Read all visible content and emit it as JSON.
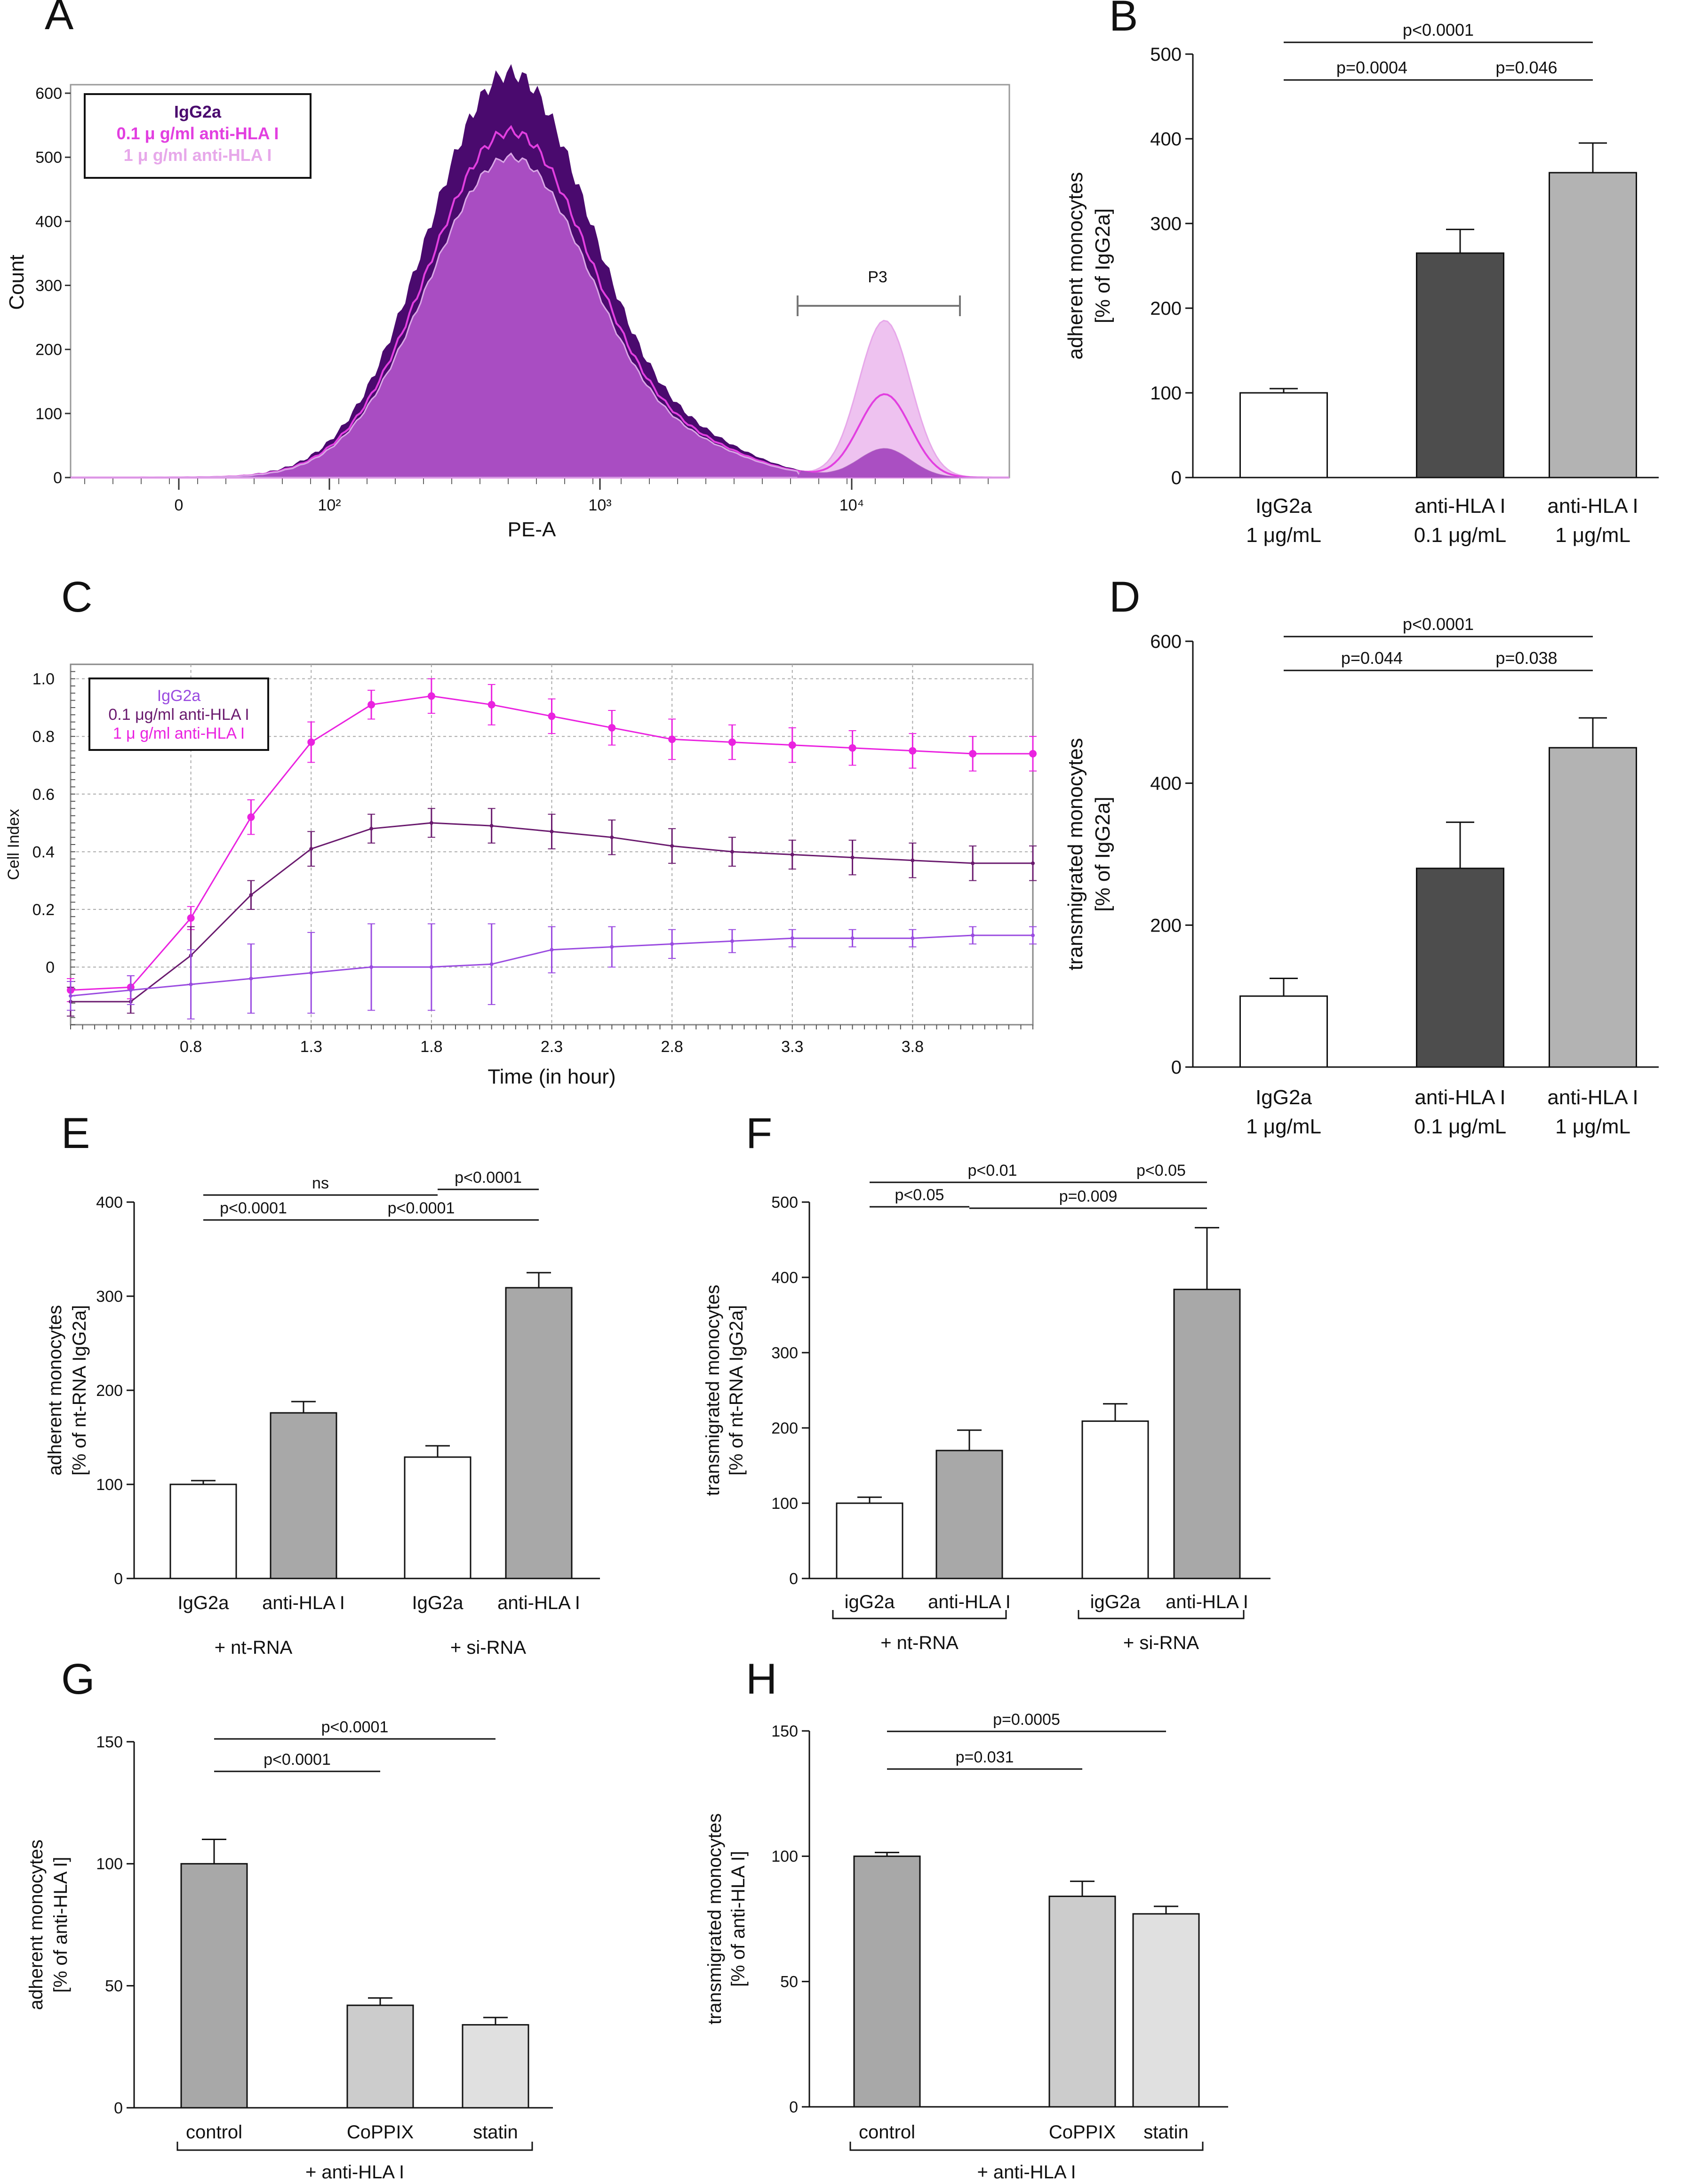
{
  "panel_letters": [
    "A",
    "B",
    "C",
    "D",
    "E",
    "F",
    "G",
    "H"
  ],
  "colors": {
    "igg2a_dark": "#4a0a6e",
    "mid_magenta": "#e23fe0",
    "light_pink": "#e7a8ea",
    "fill_purple": "#a94dc2",
    "ci_magenta": "#ea22e0",
    "ci_plum": "#6a1a6e",
    "ci_violet": "#9a4be0",
    "bar_white": "#ffffff",
    "bar_dark": "#4d4d4d",
    "bar_light": "#b3b3b3",
    "bar_mid": "#a8a8a8",
    "bar_pale": "#cccccc",
    "bar_paler": "#e0e0e0"
  },
  "chart_data": [
    {
      "id": "A",
      "type": "area",
      "subtype": "flow cytometry histogram",
      "title": "",
      "xlabel": "PE-A",
      "ylabel": "Count",
      "x_scale": "biexponential",
      "x_ticks": [
        {
          "value": "0",
          "label": "0"
        },
        {
          "value": "1e2",
          "label": "10²"
        },
        {
          "value": "1e3",
          "label": "10³"
        },
        {
          "value": "1e4",
          "label": "10⁴"
        }
      ],
      "y_ticks": [
        0,
        100,
        200,
        300,
        400,
        500,
        600
      ],
      "ylim": [
        0,
        650
      ],
      "gate": {
        "name": "P3",
        "range": "≈ 6×10³ – 3×10⁴"
      },
      "legend": {
        "position": "top-left",
        "entries": [
          {
            "label": "IgG2a",
            "color": "#4a0a6e"
          },
          {
            "label": "0.1 μ g/ml anti-HLA I",
            "color": "#e23fe0"
          },
          {
            "label": "1 μ g/ml anti-HLA I",
            "color": "#e7a8ea"
          }
        ]
      },
      "series": [
        {
          "name": "IgG2a",
          "main_peak_count": 630,
          "main_peak_at": 480,
          "p3_peak_count": 45
        },
        {
          "name": "0.1 μ g/ml anti-HLA I",
          "main_peak_count": 540,
          "main_peak_at": 480,
          "p3_peak_count": 130
        },
        {
          "name": "1 μ g/ml anti-HLA I",
          "main_peak_count": 500,
          "main_peak_at": 480,
          "p3_peak_count": 245
        }
      ]
    },
    {
      "id": "B",
      "type": "bar",
      "ylabel_lines": [
        "adherent monocytes",
        "[% of IgG2a]"
      ],
      "ylim": [
        0,
        500
      ],
      "y_ticks": [
        0,
        100,
        200,
        300,
        400,
        500
      ],
      "categories": [
        {
          "label_lines": [
            "IgG2a",
            "1 μg/mL"
          ],
          "value": 100,
          "error": 5,
          "color": "#ffffff"
        },
        {
          "label_lines": [
            "anti-HLA I",
            "0.1 μg/mL"
          ],
          "value": 265,
          "error": 28,
          "color": "#4d4d4d"
        },
        {
          "label_lines": [
            "anti-HLA I",
            "1 μg/mL"
          ],
          "value": 360,
          "error": 35,
          "color": "#b3b3b3"
        }
      ],
      "significance": [
        {
          "from": 1,
          "to": 2,
          "label": "p=0.0004",
          "level": 0
        },
        {
          "from": 2,
          "to": 3,
          "label": "p=0.046",
          "level": 0
        },
        {
          "from": 1,
          "to": 3,
          "label": "p<0.0001",
          "level": 1
        }
      ]
    },
    {
      "id": "C",
      "type": "line",
      "xlabel": "Time (in hour)",
      "ylabel": "Cell Index",
      "xlim": [
        0.3,
        4.3
      ],
      "ylim": [
        -0.2,
        1.05
      ],
      "x_ticks": [
        0.8,
        1.3,
        1.8,
        2.3,
        2.8,
        3.3,
        3.8
      ],
      "y_ticks": [
        0,
        0.2,
        0.4,
        0.6,
        0.8,
        1.0
      ],
      "y_tick_labels": [
        "0",
        "0.2",
        "0.4",
        "0.6",
        "0.8",
        "1.0"
      ],
      "legend": {
        "position": "top-left",
        "entries": [
          {
            "label": "IgG2a",
            "color": "#9a4be0"
          },
          {
            "label": "0.1 μg/ml anti-HLA I",
            "color": "#6a1a6e"
          },
          {
            "label": "1 μ g/ml anti-HLA I",
            "color": "#ea22e0"
          }
        ]
      },
      "x": [
        0.3,
        0.55,
        0.8,
        1.05,
        1.3,
        1.55,
        1.8,
        2.05,
        2.3,
        2.55,
        2.8,
        3.05,
        3.3,
        3.55,
        3.8,
        4.05,
        4.3
      ],
      "series": [
        {
          "name": "1 μ g/ml anti-HLA I",
          "color": "#ea22e0",
          "marker": true,
          "values": [
            -0.08,
            -0.07,
            0.17,
            0.52,
            0.78,
            0.91,
            0.94,
            0.91,
            0.87,
            0.83,
            0.79,
            0.78,
            0.77,
            0.76,
            0.75,
            0.74,
            0.74
          ],
          "errors": [
            0.04,
            0.04,
            0.04,
            0.06,
            0.07,
            0.05,
            0.06,
            0.07,
            0.06,
            0.06,
            0.07,
            0.06,
            0.06,
            0.06,
            0.06,
            0.06,
            0.06
          ]
        },
        {
          "name": "0.1 μg/ml anti-HLA I",
          "color": "#6a1a6e",
          "marker": false,
          "values": [
            -0.12,
            -0.12,
            0.04,
            0.25,
            0.41,
            0.48,
            0.5,
            0.49,
            0.47,
            0.45,
            0.42,
            0.4,
            0.39,
            0.38,
            0.37,
            0.36,
            0.36
          ],
          "errors": [
            0.05,
            0.04,
            0.1,
            0.05,
            0.06,
            0.05,
            0.05,
            0.06,
            0.06,
            0.06,
            0.06,
            0.05,
            0.05,
            0.06,
            0.06,
            0.06,
            0.06
          ]
        },
        {
          "name": "IgG2a",
          "color": "#9a4be0",
          "marker": false,
          "values": [
            -0.1,
            -0.08,
            -0.06,
            -0.04,
            -0.02,
            0.0,
            0.0,
            0.01,
            0.06,
            0.07,
            0.08,
            0.09,
            0.1,
            0.1,
            0.1,
            0.11,
            0.11
          ],
          "errors": [
            0.05,
            0.05,
            0.12,
            0.12,
            0.14,
            0.15,
            0.15,
            0.14,
            0.08,
            0.07,
            0.05,
            0.04,
            0.03,
            0.03,
            0.03,
            0.03,
            0.03
          ]
        }
      ]
    },
    {
      "id": "D",
      "type": "bar",
      "ylabel_lines": [
        "transmigrated monocytes",
        "[% of IgG2a]"
      ],
      "ylim": [
        0,
        600
      ],
      "y_ticks": [
        0,
        200,
        400,
        600
      ],
      "categories": [
        {
          "label_lines": [
            "IgG2a",
            "1 μg/mL"
          ],
          "value": 100,
          "error": 25,
          "color": "#ffffff"
        },
        {
          "label_lines": [
            "anti-HLA I",
            "0.1 μg/mL"
          ],
          "value": 280,
          "error": 65,
          "color": "#4d4d4d"
        },
        {
          "label_lines": [
            "anti-HLA I",
            "1 μg/mL"
          ],
          "value": 450,
          "error": 42,
          "color": "#b3b3b3"
        }
      ],
      "significance": [
        {
          "from": 1,
          "to": 2,
          "label": "p=0.044",
          "level": 0
        },
        {
          "from": 2,
          "to": 3,
          "label": "p=0.038",
          "level": 0
        },
        {
          "from": 1,
          "to": 3,
          "label": "p<0.0001",
          "level": 1
        }
      ]
    },
    {
      "id": "E",
      "type": "bar",
      "ylabel_lines": [
        "adherent monocytes",
        "[% of nt-RNA IgG2a]"
      ],
      "ylim": [
        0,
        400
      ],
      "y_ticks": [
        0,
        100,
        200,
        300,
        400
      ],
      "categories": [
        {
          "label_lines": [
            "IgG2a"
          ],
          "value": 100,
          "error": 4,
          "color": "#ffffff"
        },
        {
          "label_lines": [
            "anti-HLA I"
          ],
          "value": 176,
          "error": 12,
          "color": "#a8a8a8"
        },
        {
          "label_lines": [
            "IgG2a"
          ],
          "value": 129,
          "error": 12,
          "color": "#ffffff"
        },
        {
          "label_lines": [
            "anti-HLA I"
          ],
          "value": 309,
          "error": 16,
          "color": "#a8a8a8"
        }
      ],
      "groups": [
        {
          "label": "+ nt-RNA",
          "from": 1,
          "to": 2,
          "bracket": false
        },
        {
          "label": "+ si-RNA",
          "from": 3,
          "to": 4,
          "bracket": false
        }
      ],
      "significance": [
        {
          "from": 1,
          "to": 2,
          "label": "p<0.0001",
          "level": 0
        },
        {
          "from": 2,
          "to": 4,
          "label": "p<0.0001",
          "level": 1
        },
        {
          "from": 1,
          "to": 3,
          "label": "ns",
          "level": 2
        },
        {
          "from": 3,
          "to": 4,
          "label": "p<0.0001",
          "level": 3
        }
      ]
    },
    {
      "id": "F",
      "type": "bar",
      "ylabel_lines": [
        "transmigrated monocytes",
        "[% of nt-RNA IgG2a]"
      ],
      "ylim": [
        0,
        500
      ],
      "y_ticks": [
        0,
        100,
        200,
        300,
        400,
        500
      ],
      "categories": [
        {
          "label_lines": [
            "igG2a"
          ],
          "value": 100,
          "error": 8,
          "color": "#ffffff"
        },
        {
          "label_lines": [
            "anti-HLA I"
          ],
          "value": 170,
          "error": 27,
          "color": "#a8a8a8"
        },
        {
          "label_lines": [
            "igG2a"
          ],
          "value": 209,
          "error": 23,
          "color": "#ffffff"
        },
        {
          "label_lines": [
            "anti-HLA I"
          ],
          "value": 384,
          "error": 82,
          "color": "#a8a8a8"
        }
      ],
      "groups": [
        {
          "label": "+ nt-RNA",
          "from": 1,
          "to": 2,
          "bracket": true
        },
        {
          "label": "+ si-RNA",
          "from": 3,
          "to": 4,
          "bracket": true
        }
      ],
      "significance": [
        {
          "from": 1,
          "to": 2,
          "label": "p<0.05",
          "level": 0
        },
        {
          "from": 2,
          "to": 4,
          "label": "p=0.009",
          "level": 1
        },
        {
          "from": 1,
          "to": 3,
          "label": "p<0.01",
          "level": 2
        },
        {
          "from": 3,
          "to": 4,
          "label": "p<0.05",
          "level": 2
        }
      ]
    },
    {
      "id": "G",
      "type": "bar",
      "ylabel_lines": [
        "adherent monocytes",
        "[% of anti-HLA I]"
      ],
      "ylim": [
        0,
        150
      ],
      "y_ticks": [
        0,
        50,
        100,
        150
      ],
      "categories": [
        {
          "label_lines": [
            "control"
          ],
          "value": 100,
          "error": 10,
          "color": "#a8a8a8"
        },
        {
          "label_lines": [
            "CoPPIX"
          ],
          "value": 42,
          "error": 3,
          "color": "#cccccc"
        },
        {
          "label_lines": [
            "statin"
          ],
          "value": 34,
          "error": 3,
          "color": "#e0e0e0"
        }
      ],
      "groups": [
        {
          "label": "+ anti-HLA I",
          "from": 1,
          "to": 3,
          "bracket": true
        }
      ],
      "significance": [
        {
          "from": 1,
          "to": 2,
          "label": "p<0.0001",
          "level": 0
        },
        {
          "from": 1,
          "to": 3,
          "label": "p<0.0001",
          "level": 1
        }
      ]
    },
    {
      "id": "H",
      "type": "bar",
      "ylabel_lines": [
        "transmigrated monocytes",
        "[% of anti-HLA I]"
      ],
      "ylim": [
        0,
        150
      ],
      "y_ticks": [
        0,
        50,
        100,
        150
      ],
      "categories": [
        {
          "label_lines": [
            "control"
          ],
          "value": 100,
          "error": 1.5,
          "color": "#a8a8a8"
        },
        {
          "label_lines": [
            "CoPPIX"
          ],
          "value": 84,
          "error": 6,
          "color": "#cccccc"
        },
        {
          "label_lines": [
            "statin"
          ],
          "value": 77,
          "error": 3,
          "color": "#e0e0e0"
        }
      ],
      "groups": [
        {
          "label": "+ anti-HLA I",
          "from": 1,
          "to": 3,
          "bracket": true
        }
      ],
      "significance": [
        {
          "from": 1,
          "to": 2,
          "label": "p=0.031",
          "level": 0
        },
        {
          "from": 1,
          "to": 3,
          "label": "p=0.0005",
          "level": 1
        }
      ]
    }
  ]
}
